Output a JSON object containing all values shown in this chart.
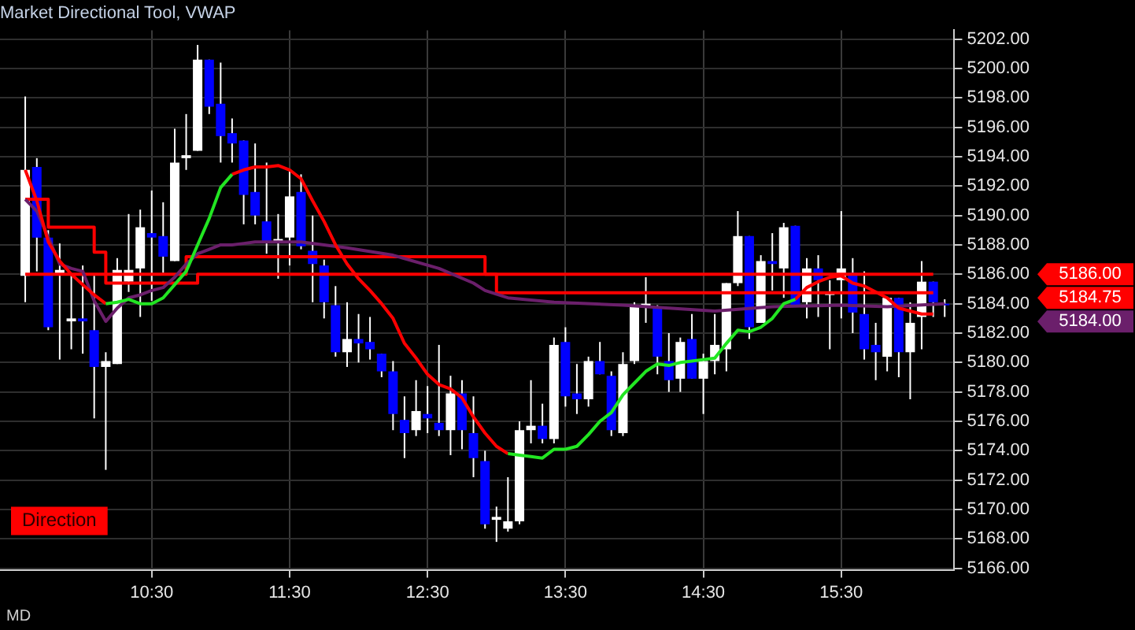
{
  "chart_data": {
    "type": "candlestick",
    "title": "Market Directional Tool, VWAP",
    "x": [
      9.583,
      9.667,
      9.75,
      9.833,
      9.917,
      10,
      10.083,
      10.167,
      10.25,
      10.333,
      10.417,
      10.5,
      10.583,
      10.667,
      10.75,
      10.833,
      10.917,
      11,
      11.083,
      11.167,
      11.25,
      11.333,
      11.417,
      11.5,
      11.583,
      11.667,
      11.75,
      11.833,
      11.917,
      12,
      12.083,
      12.167,
      12.25,
      12.333,
      12.417,
      12.5,
      12.583,
      12.667,
      12.75,
      12.833,
      12.917,
      13,
      13.083,
      13.167,
      13.25,
      13.333,
      13.417,
      13.5,
      13.583,
      13.667,
      13.75,
      13.833,
      13.917,
      14,
      14.083,
      14.167,
      14.25,
      14.333,
      14.417,
      14.5,
      14.583,
      14.667,
      14.75,
      14.833,
      14.917,
      15,
      15.083,
      15.167,
      15.25,
      15.333,
      15.417,
      15.5,
      15.583,
      15.667,
      15.75,
      15.833,
      15.917,
      16,
      16.083,
      16.167,
      16.25
    ],
    "ohlc": [
      [
        5185.9,
        5198.1,
        5184.1,
        5193.1
      ],
      [
        5193.3,
        5193.9,
        5186.2,
        5188.5
      ],
      [
        5188.5,
        5189.0,
        5182.2,
        5182.4
      ],
      [
        5186.0,
        5188.1,
        5180.2,
        5186.3
      ],
      [
        5182.8,
        5186.0,
        5180.9,
        5183.0
      ],
      [
        5183.0,
        5186.6,
        5180.6,
        5182.8
      ],
      [
        5182.2,
        5185.9,
        5176.2,
        5179.7
      ],
      [
        5179.7,
        5180.7,
        5172.7,
        5180.1
      ],
      [
        5179.9,
        5187.1,
        5179.9,
        5186.3
      ],
      [
        5185.5,
        5190.1,
        5184.8,
        5186.3
      ],
      [
        5186.4,
        5190.4,
        5183.1,
        5189.2
      ],
      [
        5188.8,
        5191.7,
        5184.2,
        5188.5
      ],
      [
        5188.6,
        5190.9,
        5186.1,
        5187.2
      ],
      [
        5186.9,
        5195.9,
        5186.9,
        5193.6
      ],
      [
        5193.9,
        5196.9,
        5193.1,
        5194.1
      ],
      [
        5194.4,
        5201.6,
        5194.4,
        5200.6
      ],
      [
        5200.6,
        5200.6,
        5196.9,
        5197.4
      ],
      [
        5197.6,
        5200.4,
        5193.6,
        5195.4
      ],
      [
        5195.6,
        5196.6,
        5193.6,
        5194.9
      ],
      [
        5195.1,
        5195.1,
        5189.4,
        5191.4
      ],
      [
        5191.6,
        5194.9,
        5189.4,
        5190.0
      ],
      [
        5189.6,
        5193.6,
        5187.4,
        5188.2
      ],
      [
        5188.2,
        5190.1,
        5185.7,
        5188.4
      ],
      [
        5188.5,
        5193.1,
        5186.6,
        5191.3
      ],
      [
        5191.6,
        5192.8,
        5187.7,
        5187.9
      ],
      [
        5187.6,
        5190.0,
        5184.1,
        5186.7
      ],
      [
        5186.6,
        5187.0,
        5183.0,
        5184.1
      ],
      [
        5183.9,
        5185.2,
        5180.4,
        5180.7
      ],
      [
        5180.7,
        5184.1,
        5179.7,
        5181.6
      ],
      [
        5181.6,
        5183.3,
        5180.0,
        5181.3
      ],
      [
        5181.4,
        5183.1,
        5180.2,
        5180.9
      ],
      [
        5180.6,
        5180.6,
        5179.0,
        5179.4
      ],
      [
        5179.4,
        5180.1,
        5175.4,
        5176.5
      ],
      [
        5176.1,
        5177.7,
        5173.5,
        5175.2
      ],
      [
        5175.4,
        5178.8,
        5175.0,
        5176.7
      ],
      [
        5176.5,
        5178.4,
        5175.2,
        5176.2
      ],
      [
        5175.9,
        5181.2,
        5175.0,
        5175.4
      ],
      [
        5175.4,
        5179.1,
        5173.7,
        5177.9
      ],
      [
        5177.9,
        5178.8,
        5174.1,
        5175.4
      ],
      [
        5175.2,
        5177.7,
        5172.2,
        5173.5
      ],
      [
        5173.3,
        5174.0,
        5168.7,
        5169.0
      ],
      [
        5169.3,
        5170.2,
        5167.8,
        5169.5
      ],
      [
        5168.7,
        5172.2,
        5168.5,
        5169.2
      ],
      [
        5169.2,
        5176.0,
        5169.0,
        5175.4
      ],
      [
        5175.4,
        5178.8,
        5174.5,
        5175.7
      ],
      [
        5175.7,
        5177.2,
        5174.5,
        5174.8
      ],
      [
        5174.8,
        5181.7,
        5174.5,
        5181.2
      ],
      [
        5181.4,
        5182.4,
        5177.0,
        5177.7
      ],
      [
        5177.9,
        5179.9,
        5176.5,
        5177.5
      ],
      [
        5177.5,
        5180.4,
        5177.0,
        5180.1
      ],
      [
        5180.1,
        5181.4,
        5179.2,
        5179.2
      ],
      [
        5179.1,
        5179.4,
        5175.0,
        5175.4
      ],
      [
        5175.2,
        5180.7,
        5175.0,
        5179.9
      ],
      [
        5180.1,
        5184.1,
        5179.9,
        5183.9
      ],
      [
        5183.8,
        5185.8,
        5182.7,
        5184.0
      ],
      [
        5183.7,
        5183.9,
        5179.2,
        5180.4
      ],
      [
        5180.1,
        5182.0,
        5178.0,
        5178.8
      ],
      [
        5178.9,
        5181.7,
        5178.0,
        5181.4
      ],
      [
        5181.6,
        5183.3,
        5178.9,
        5178.9
      ],
      [
        5178.9,
        5180.6,
        5176.5,
        5180.1
      ],
      [
        5180.1,
        5183.3,
        5179.2,
        5181.2
      ],
      [
        5180.9,
        5185.4,
        5179.4,
        5185.4
      ],
      [
        5185.4,
        5190.3,
        5185.2,
        5188.6
      ],
      [
        5188.6,
        5188.6,
        5181.6,
        5182.4
      ],
      [
        5182.7,
        5187.3,
        5182.7,
        5186.9
      ],
      [
        5186.9,
        5188.8,
        5184.9,
        5186.7
      ],
      [
        5186.4,
        5189.5,
        5184.4,
        5189.2
      ],
      [
        5189.3,
        5189.3,
        5183.9,
        5183.9
      ],
      [
        5184.1,
        5187.1,
        5183.0,
        5186.4
      ],
      [
        5186.4,
        5187.3,
        5183.1,
        5185.6
      ],
      [
        5184.6,
        5185.6,
        5180.9,
        5184.7
      ],
      [
        5185.6,
        5190.3,
        5183.0,
        5186.4
      ],
      [
        5186.1,
        5187.1,
        5182.0,
        5183.4
      ],
      [
        5183.3,
        5186.2,
        5180.2,
        5180.9
      ],
      [
        5181.2,
        5182.7,
        5178.8,
        5180.7
      ],
      [
        5180.4,
        5184.4,
        5179.4,
        5184.4
      ],
      [
        5184.4,
        5184.4,
        5179.0,
        5180.7
      ],
      [
        5180.7,
        5184.1,
        5177.5,
        5182.7
      ],
      [
        5183.1,
        5186.9,
        5180.9,
        5185.5
      ],
      [
        5185.5,
        5185.5,
        5183.1,
        5184.1
      ],
      [
        5184.0,
        5184.3,
        5183.1,
        5183.9
      ]
    ],
    "colors": [
      "#ffffff",
      "#0000ff",
      "#0000ff",
      "#ffffff",
      "#ffffff",
      "#0000ff",
      "#0000ff",
      "#ffffff",
      "#ffffff",
      "#ffffff",
      "#ffffff",
      "#0000ff",
      "#0000ff",
      "#ffffff",
      "#ffffff",
      "#ffffff",
      "#0000ff",
      "#0000ff",
      "#0000ff",
      "#0000ff",
      "#0000ff",
      "#0000ff",
      "#ffffff",
      "#ffffff",
      "#0000ff",
      "#0000ff",
      "#0000ff",
      "#0000ff",
      "#ffffff",
      "#0000ff",
      "#0000ff",
      "#0000ff",
      "#0000ff",
      "#0000ff",
      "#ffffff",
      "#0000ff",
      "#0000ff",
      "#ffffff",
      "#0000ff",
      "#0000ff",
      "#0000ff",
      "#ffffff",
      "#ffffff",
      "#ffffff",
      "#ffffff",
      "#0000ff",
      "#ffffff",
      "#0000ff",
      "#0000ff",
      "#ffffff",
      "#0000ff",
      "#0000ff",
      "#ffffff",
      "#ffffff",
      "#ffffff",
      "#0000ff",
      "#0000ff",
      "#ffffff",
      "#0000ff",
      "#ffffff",
      "#ffffff",
      "#ffffff",
      "#ffffff",
      "#0000ff",
      "#ffffff",
      "#0000ff",
      "#ffffff",
      "#0000ff",
      "#ffffff",
      "#0000ff",
      "#ffffff",
      "#ffffff",
      "#0000ff",
      "#0000ff",
      "#0000ff",
      "#ffffff",
      "#0000ff",
      "#ffffff",
      "#ffffff",
      "#0000ff",
      "#0000ff"
    ],
    "series": [
      {
        "type": "step",
        "color": "#ff0000",
        "values": [
          5191.1,
          5191.1,
          5189.2,
          5189.2,
          5189.2,
          5189.2,
          5187.5,
          5186.0,
          5186.0,
          5186.0,
          5186.0,
          5186.0,
          5186.0,
          5186.0,
          5187.2,
          5187.2,
          5187.2,
          5187.2,
          5187.2,
          5187.2,
          5187.2,
          5187.2,
          5187.2,
          5187.2,
          5187.2,
          5187.2,
          5187.2,
          5187.2,
          5187.2,
          5187.2,
          5187.2,
          5187.2,
          5187.2,
          5187.2,
          5187.2,
          5187.2,
          5187.2,
          5187.2,
          5187.2,
          5187.2,
          5186.0,
          5186.0,
          5186.0,
          5186.0,
          5186.0,
          5186.0,
          5186.0,
          5186.0,
          5186.0,
          5186.0,
          5186.0,
          5186.0,
          5186.0,
          5186.0,
          5186.0,
          5186.0,
          5186.0,
          5186.0,
          5186.0,
          5186.0,
          5186.0,
          5186.0,
          5186.0,
          5186.0,
          5186.0,
          5186.0,
          5186.0,
          5186.0,
          5186.0,
          5186.0,
          5186.0,
          5186.0,
          5186.0,
          5186.0,
          5186.0,
          5186.0,
          5186.0,
          5186.0,
          5186.0,
          5186.0,
          null
        ]
      },
      {
        "type": "step",
        "color": "#ff0000",
        "values": [
          5186.0,
          5186.0,
          5186.0,
          5186.0,
          5186.0,
          5186.0,
          5186.0,
          5185.4,
          5185.4,
          5185.4,
          5185.4,
          5185.4,
          5185.4,
          5185.4,
          5185.4,
          5186.0,
          5186.0,
          5186.0,
          5186.0,
          5186.0,
          5186.0,
          5186.0,
          5186.0,
          5186.0,
          5186.0,
          5186.0,
          5186.0,
          5186.0,
          5186.0,
          5186.0,
          5186.0,
          5186.0,
          5186.0,
          5186.0,
          5186.0,
          5186.0,
          5186.0,
          5186.0,
          5186.0,
          5186.0,
          5186.0,
          5184.75,
          5184.75,
          5184.75,
          5184.75,
          5184.75,
          5184.75,
          5184.75,
          5184.75,
          5184.75,
          5184.75,
          5184.75,
          5184.75,
          5184.75,
          5184.75,
          5184.75,
          5184.75,
          5184.75,
          5184.75,
          5184.75,
          5184.75,
          5184.75,
          5184.75,
          5184.75,
          5184.75,
          5184.75,
          5184.75,
          5184.75,
          5184.75,
          5184.75,
          5184.75,
          5184.75,
          5184.75,
          5184.75,
          5184.75,
          5184.75,
          5184.75,
          5184.75,
          5184.75,
          5184.75,
          null
        ]
      },
      {
        "type": "line",
        "color": "#6b1f6b",
        "x": [
          9.583,
          9.667,
          9.75,
          9.833,
          9.917,
          10,
          10.083,
          10.167,
          10.25,
          10.333,
          10.417,
          10.5,
          10.583,
          10.667,
          10.75,
          10.833,
          10.917,
          11,
          11.083,
          11.167,
          11.25,
          11.583,
          11.917,
          12.25,
          12.583,
          12.833,
          12.917,
          13.083,
          13.417,
          13.917,
          14.25,
          14.583,
          15,
          15.5,
          15.833,
          16.25
        ],
        "values": [
          5191.1,
          5190.3,
          5188.5,
          5186.7,
          5186.4,
          5186.2,
          5184.2,
          5182.8,
          5183.7,
          5184.4,
          5184.6,
          5184.9,
          5185.1,
          5185.8,
          5186.7,
          5187.4,
          5187.7,
          5188.0,
          5188.0,
          5188.1,
          5188.2,
          5188.2,
          5187.8,
          5187.3,
          5186.4,
          5185.4,
          5184.9,
          5184.4,
          5184.1,
          5183.9,
          5183.7,
          5183.5,
          5183.8,
          5183.9,
          5183.8,
          5184.0
        ]
      },
      {
        "type": "line",
        "color": "#ff0000",
        "values": [
          5193.1,
          5191.0,
          5188.2,
          5186.9,
          5186.0,
          5185.3,
          5184.6,
          5184.0,
          null,
          null,
          null,
          null,
          null,
          null,
          null,
          null,
          null,
          null,
          5192.8,
          5193.1,
          5193.3,
          5193.3,
          5193.4,
          5193.1,
          5192.5,
          5191.0,
          5189.6,
          5188.0,
          5186.7,
          5185.7,
          5184.9,
          5184.0,
          5183.0,
          5181.3,
          5180.3,
          5179.2,
          5178.5,
          5178.2,
          5177.6,
          5176.3,
          5175.2,
          5174.3,
          5173.8,
          null,
          null,
          null,
          null,
          null,
          null,
          null,
          null,
          null,
          null,
          null,
          null,
          null,
          null,
          null,
          null,
          null,
          null,
          null,
          null,
          null,
          null,
          null,
          null,
          5184.3,
          5185.1,
          5185.5,
          5185.8,
          5185.9,
          5185.4,
          5185.2,
          5184.8,
          5184.4,
          5183.7,
          5183.5,
          5183.3,
          5183.3,
          null
        ]
      },
      {
        "type": "line",
        "color": "#22e622",
        "values": [
          null,
          null,
          null,
          null,
          null,
          null,
          null,
          5184.0,
          5184.1,
          5184.3,
          5184.0,
          5184.0,
          5184.4,
          5185.3,
          5186.2,
          5188.0,
          5189.8,
          5191.9,
          5192.8,
          null,
          null,
          null,
          null,
          null,
          null,
          null,
          null,
          null,
          null,
          null,
          null,
          null,
          null,
          null,
          null,
          null,
          null,
          null,
          null,
          null,
          null,
          null,
          5173.8,
          5173.7,
          5173.6,
          5173.5,
          5174.1,
          5174.1,
          5174.3,
          5175.1,
          5176.0,
          5176.6,
          5177.8,
          5178.6,
          5179.4,
          5179.9,
          5179.8,
          5180.0,
          5180.1,
          5180.2,
          5180.3,
          5181.3,
          5182.2,
          5182.1,
          5182.4,
          5183.0,
          5184.0,
          5184.3,
          null,
          null,
          null,
          null,
          null,
          null,
          null,
          null,
          null,
          null,
          null,
          null,
          null
        ]
      }
    ],
    "xlim": [
      9.4,
      16.32
    ],
    "xticks": [
      {
        "value": 10.5,
        "label": "10:30"
      },
      {
        "value": 11.5,
        "label": "11:30"
      },
      {
        "value": 12.5,
        "label": "12:30"
      },
      {
        "value": 13.5,
        "label": "13:30"
      },
      {
        "value": 14.5,
        "label": "14:30"
      },
      {
        "value": 15.5,
        "label": "15:30"
      }
    ],
    "ylim": [
      5165.9,
      5202.6
    ],
    "yticks": [
      {
        "value": 5166,
        "label": "5166.00"
      },
      {
        "value": 5168,
        "label": "5168.00"
      },
      {
        "value": 5170,
        "label": "5170.00"
      },
      {
        "value": 5172,
        "label": "5172.00"
      },
      {
        "value": 5174,
        "label": "5174.00"
      },
      {
        "value": 5176,
        "label": "5176.00"
      },
      {
        "value": 5178,
        "label": "5178.00"
      },
      {
        "value": 5180,
        "label": "5180.00"
      },
      {
        "value": 5182,
        "label": "5182.00"
      },
      {
        "value": 5184,
        "label": "5184.00"
      },
      {
        "value": 5186,
        "label": "5186.00"
      },
      {
        "value": 5188,
        "label": "5188.00"
      },
      {
        "value": 5190,
        "label": "5190.00"
      },
      {
        "value": 5192,
        "label": "5192.00"
      },
      {
        "value": 5194,
        "label": "5194.00"
      },
      {
        "value": 5196,
        "label": "5196.00"
      },
      {
        "value": 5198,
        "label": "5198.00"
      },
      {
        "value": 5200,
        "label": "5200.00"
      },
      {
        "value": 5202,
        "label": "5202.00"
      }
    ],
    "grid": true,
    "annotations": [
      "5186.00",
      "5184.75",
      "5184.00",
      "Direction",
      "MD"
    ]
  }
}
